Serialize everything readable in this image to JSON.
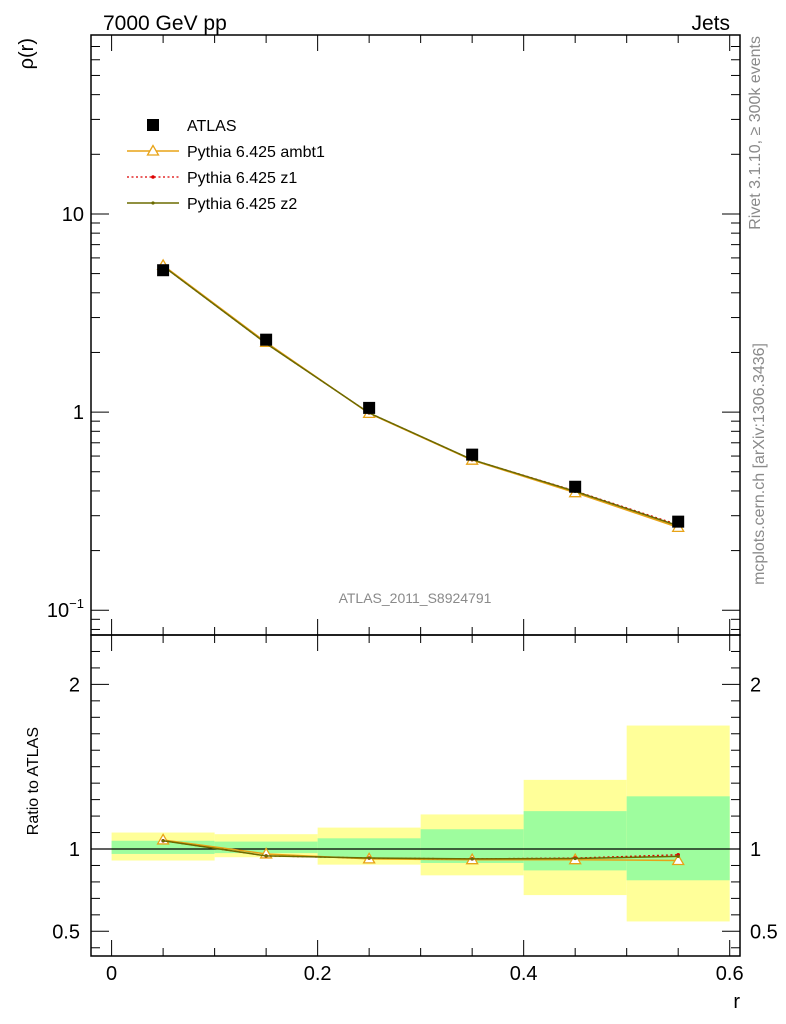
{
  "header": {
    "left": "7000 GeV pp",
    "right": "Jets"
  },
  "side_text": {
    "rivet": "Rivet 3.1.10, ≥ 300k events",
    "mcplots": "mcplots.cern.ch [arXiv:1306.3436]"
  },
  "watermark": "ATLAS_2011_S8924791",
  "colors": {
    "data": "#000000",
    "ambt1": "#e8a317",
    "z1": "#dd0000",
    "z2": "#6b6b00",
    "band_inner": "#9efd9e",
    "band_outer": "#ffff99",
    "watermark": "#8a8a8a"
  },
  "chart_data": [
    {
      "type": "line",
      "panel": "main",
      "ylabel": "ρ(r)",
      "yscale": "log",
      "xlim": [
        -0.02,
        0.61
      ],
      "ylim": [
        0.075,
        80
      ],
      "y_ticks": [
        {
          "value": 0.1,
          "label": "10",
          "sup": "−1"
        },
        {
          "value": 1,
          "label": "1",
          "sup": ""
        },
        {
          "value": 10,
          "label": "10",
          "sup": ""
        }
      ],
      "legend_position": "upper-left",
      "x": [
        0.05,
        0.15,
        0.25,
        0.35,
        0.45,
        0.55
      ],
      "series": [
        {
          "name": "ATLAS",
          "style": "marker-square",
          "values": [
            5.2,
            2.32,
            1.05,
            0.61,
            0.42,
            0.28
          ]
        },
        {
          "name": "Pythia 6.425 ambt1",
          "style": "line-triangle",
          "values": [
            5.5,
            2.25,
            0.985,
            0.572,
            0.392,
            0.262
          ]
        },
        {
          "name": "Pythia 6.425 z1",
          "style": "dotted-dot",
          "values": [
            5.45,
            2.22,
            0.99,
            0.575,
            0.4,
            0.27
          ]
        },
        {
          "name": "Pythia 6.425 z2",
          "style": "line-dot",
          "values": [
            5.45,
            2.22,
            0.99,
            0.575,
            0.398,
            0.267
          ]
        }
      ]
    },
    {
      "type": "line",
      "panel": "ratio",
      "ylabel": "Ratio to ATLAS",
      "xlabel": "r",
      "xlim": [
        -0.02,
        0.61
      ],
      "ylim": [
        0.35,
        2.3
      ],
      "y_ticks": [
        {
          "value": 0.5,
          "label": "0.5"
        },
        {
          "value": 1,
          "label": "1"
        },
        {
          "value": 2,
          "label": "2"
        }
      ],
      "x_ticks": [
        {
          "value": 0,
          "label": "0"
        },
        {
          "value": 0.2,
          "label": "0.2"
        },
        {
          "value": 0.4,
          "label": "0.4"
        },
        {
          "value": 0.6,
          "label": "0.6"
        }
      ],
      "bands": [
        {
          "xmin": 0.0,
          "xmax": 0.1,
          "outer": [
            0.93,
            1.1
          ],
          "inner": [
            0.97,
            1.05
          ]
        },
        {
          "xmin": 0.1,
          "xmax": 0.2,
          "outer": [
            0.95,
            1.09
          ],
          "inner": [
            0.975,
            1.045
          ]
        },
        {
          "xmin": 0.2,
          "xmax": 0.3,
          "outer": [
            0.905,
            1.13
          ],
          "inner": [
            0.945,
            1.065
          ]
        },
        {
          "xmin": 0.3,
          "xmax": 0.4,
          "outer": [
            0.84,
            1.21
          ],
          "inner": [
            0.915,
            1.12
          ]
        },
        {
          "xmin": 0.4,
          "xmax": 0.5,
          "outer": [
            0.72,
            1.42
          ],
          "inner": [
            0.87,
            1.23
          ]
        },
        {
          "xmin": 0.5,
          "xmax": 0.6,
          "outer": [
            0.56,
            1.75
          ],
          "inner": [
            0.81,
            1.32
          ]
        }
      ],
      "x": [
        0.05,
        0.15,
        0.25,
        0.35,
        0.45,
        0.55
      ],
      "series": [
        {
          "name": "Pythia 6.425 ambt1",
          "style": "line-triangle",
          "values": [
            1.055,
            0.97,
            0.94,
            0.935,
            0.935,
            0.93
          ]
        },
        {
          "name": "Pythia 6.425 z1",
          "style": "dotted-dot",
          "values": [
            1.05,
            0.958,
            0.945,
            0.94,
            0.945,
            0.965
          ]
        },
        {
          "name": "Pythia 6.425 z2",
          "style": "line-dot",
          "values": [
            1.05,
            0.958,
            0.945,
            0.94,
            0.942,
            0.955
          ]
        }
      ]
    }
  ]
}
